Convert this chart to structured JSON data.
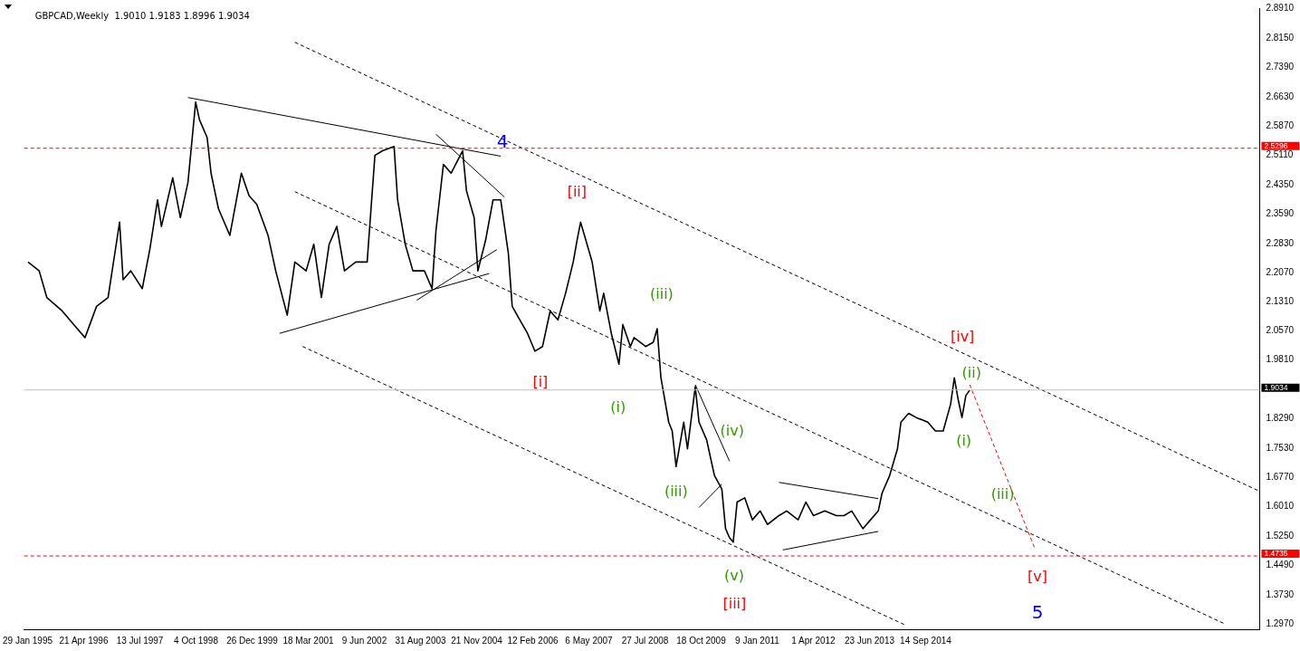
{
  "chart_data": {
    "type": "line",
    "title": "GBPCAD,Weekly  1.9010 1.9183 1.8996 1.9034",
    "marker": "none",
    "grid": false,
    "legend": false,
    "x": [
      "1995-02",
      "1995-05",
      "1995-07",
      "1995-11",
      "1996-02",
      "1996-05",
      "1996-08",
      "1996-11",
      "1997-02",
      "1997-03",
      "1997-05",
      "1997-08",
      "1997-10",
      "1997-12",
      "1998-01",
      "1998-04",
      "1998-06",
      "1998-08",
      "1998-10",
      "1998-11",
      "1999-01",
      "1999-02",
      "1999-04",
      "1999-07",
      "1999-10",
      "1999-12",
      "2000-02",
      "2000-05",
      "2000-07",
      "2000-10",
      "2000-12",
      "2001-03",
      "2001-05",
      "2001-07",
      "2001-09",
      "2001-11",
      "2002-01",
      "2002-04",
      "2002-07",
      "2002-09",
      "2002-11",
      "2003-02",
      "2003-03",
      "2003-05",
      "2003-07",
      "2003-10",
      "2003-12",
      "2004-01",
      "2004-03",
      "2004-05",
      "2004-08",
      "2004-09",
      "2004-11",
      "2004-12",
      "2005-02",
      "2005-04",
      "2005-06",
      "2005-08",
      "2005-09",
      "2005-11",
      "2006-01",
      "2006-03",
      "2006-05",
      "2006-07",
      "2006-09",
      "2006-11",
      "2007-01",
      "2007-02",
      "2007-03",
      "2007-06",
      "2007-08",
      "2007-09",
      "2007-11",
      "2008-01",
      "2008-02",
      "2008-04",
      "2008-05",
      "2008-08",
      "2008-10",
      "2008-11",
      "2008-12",
      "2009-02",
      "2009-03",
      "2009-04",
      "2009-06",
      "2009-07",
      "2009-09",
      "2009-10",
      "2009-12",
      "2010-01",
      "2010-02",
      "2010-04",
      "2010-05",
      "2010-06",
      "2010-07",
      "2010-08",
      "2010-10",
      "2010-12",
      "2011-02",
      "2011-04",
      "2011-07",
      "2011-09",
      "2011-12",
      "2012-02",
      "2012-04",
      "2012-07",
      "2012-10",
      "2012-12",
      "2013-02",
      "2013-05",
      "2013-07",
      "2013-09",
      "2013-10",
      "2013-12",
      "2014-02",
      "2014-03",
      "2014-05",
      "2014-07",
      "2014-10",
      "2014-12",
      "2015-02",
      "2015-04",
      "2015-05",
      "2015-06",
      "2015-07",
      "2015-08",
      "2015-09"
    ],
    "series": [
      {
        "color": "#000000",
        "values": [
          2.235,
          2.212,
          2.143,
          2.108,
          2.073,
          2.039,
          2.12,
          2.143,
          2.338,
          2.189,
          2.212,
          2.166,
          2.269,
          2.396,
          2.327,
          2.453,
          2.35,
          2.442,
          2.649,
          2.603,
          2.557,
          2.465,
          2.373,
          2.304,
          2.465,
          2.407,
          2.384,
          2.304,
          2.212,
          2.097,
          2.235,
          2.212,
          2.281,
          2.143,
          2.281,
          2.327,
          2.212,
          2.235,
          2.235,
          2.511,
          2.523,
          2.534,
          2.396,
          2.281,
          2.212,
          2.212,
          2.166,
          2.315,
          2.488,
          2.465,
          2.523,
          2.419,
          2.35,
          2.212,
          2.292,
          2.396,
          2.396,
          2.258,
          2.12,
          2.085,
          2.05,
          2.004,
          2.016,
          2.108,
          2.085,
          2.154,
          2.235,
          2.292,
          2.338,
          2.235,
          2.108,
          2.154,
          2.05,
          1.97,
          2.073,
          2.016,
          2.039,
          2.016,
          2.027,
          2.062,
          1.935,
          1.82,
          1.797,
          1.705,
          1.82,
          1.751,
          1.912,
          1.82,
          1.774,
          1.728,
          1.682,
          1.647,
          1.544,
          1.521,
          1.509,
          1.613,
          1.624,
          1.567,
          1.59,
          1.555,
          1.578,
          1.59,
          1.567,
          1.613,
          1.578,
          1.59,
          1.578,
          1.578,
          1.59,
          1.544,
          1.567,
          1.59,
          1.636,
          1.682,
          1.751,
          1.82,
          1.843,
          1.832,
          1.82,
          1.797,
          1.797,
          1.866,
          1.935,
          1.878,
          1.832,
          1.889,
          1.903
        ]
      },
      {
        "type": "line",
        "color": "#000000",
        "x": [
          "1998-08",
          "2005-06"
        ],
        "values": [
          2.661,
          2.509
        ]
      },
      {
        "type": "line",
        "color": "#000000",
        "x": [
          "2000-08",
          "2005-03"
        ],
        "values": [
          2.05,
          2.205
        ]
      },
      {
        "type": "line",
        "color": "#000000",
        "x": [
          "2003-08",
          "2005-05"
        ],
        "values": [
          2.136,
          2.267
        ]
      },
      {
        "type": "line",
        "color": "#000000",
        "x": [
          "2004-01",
          "2005-07"
        ],
        "values": [
          2.566,
          2.403
        ]
      },
      {
        "type": "line",
        "color": "#000000",
        "x": [
          "2009-09",
          "2010-06"
        ],
        "values": [
          1.917,
          1.719
        ]
      },
      {
        "type": "line",
        "color": "#000000",
        "x": [
          "2009-10",
          "2010-04"
        ],
        "values": [
          1.599,
          1.659
        ]
      },
      {
        "type": "line",
        "color": "#000000",
        "x": [
          "2011-07",
          "2013-09"
        ],
        "values": [
          1.664,
          1.622
        ]
      },
      {
        "type": "line",
        "color": "#000000",
        "x": [
          "2011-08",
          "2013-09"
        ],
        "values": [
          1.489,
          1.537
        ]
      },
      {
        "type": "line",
        "color": "#000000",
        "line_style": "dashed",
        "x": [
          "2000-12",
          "2022-01"
        ],
        "values": [
          2.804,
          1.641
        ]
      },
      {
        "type": "line",
        "color": "#000000",
        "line_style": "dashed",
        "x": [
          "2000-12",
          "2021-04"
        ],
        "values": [
          2.417,
          1.297
        ]
      },
      {
        "type": "line",
        "color": "#000000",
        "line_style": "dashed",
        "x": [
          "2001-02",
          "2014-04"
        ],
        "values": [
          2.016,
          1.295
        ]
      },
      {
        "type": "line",
        "color": "#ff0000",
        "line_style": "dashed",
        "x": [
          "2015-09",
          "2017-02"
        ],
        "values": [
          1.917,
          1.493
        ]
      }
    ],
    "xlim": [
      "1995-01",
      "2022-01"
    ],
    "xticks": [
      {
        "value": "1995-01-29",
        "label": "29 Jan 1995"
      },
      {
        "value": "1996-04-21",
        "label": "21 Apr 1996"
      },
      {
        "value": "1997-07-13",
        "label": "13 Jul 1997"
      },
      {
        "value": "1998-10-04",
        "label": "4 Oct 1998"
      },
      {
        "value": "1999-12-26",
        "label": "26 Dec 1999"
      },
      {
        "value": "2001-03-18",
        "label": "18 Mar 2001"
      },
      {
        "value": "2002-06-09",
        "label": "9 Jun 2002"
      },
      {
        "value": "2003-08-31",
        "label": "31 Aug 2003"
      },
      {
        "value": "2004-11-21",
        "label": "21 Nov 2004"
      },
      {
        "value": "2006-02-12",
        "label": "12 Feb 2006"
      },
      {
        "value": "2007-05-06",
        "label": "6 May 2007"
      },
      {
        "value": "2008-07-27",
        "label": "27 Jul 2008"
      },
      {
        "value": "2009-10-18",
        "label": "18 Oct 2009"
      },
      {
        "value": "2011-01-09",
        "label": "9 Jan 2011"
      },
      {
        "value": "2012-04-01",
        "label": "1 Apr 2012"
      },
      {
        "value": "2013-06-23",
        "label": "23 Jun 2013"
      },
      {
        "value": "2014-09-14",
        "label": "14 Sep 2014"
      }
    ],
    "ylim": [
      1.2835,
      2.8925
    ],
    "yticks": [
      {
        "value": 2.891,
        "label": "2.8910"
      },
      {
        "value": 2.815,
        "label": "2.8150"
      },
      {
        "value": 2.739,
        "label": "2.7390"
      },
      {
        "value": 2.663,
        "label": "2.6630"
      },
      {
        "value": 2.587,
        "label": "2.5870"
      },
      {
        "value": 2.511,
        "label": "2.5110"
      },
      {
        "value": 2.435,
        "label": "2.4350"
      },
      {
        "value": 2.359,
        "label": "2.3590"
      },
      {
        "value": 2.283,
        "label": "2.2830"
      },
      {
        "value": 2.207,
        "label": "2.2070"
      },
      {
        "value": 2.131,
        "label": "2.1310"
      },
      {
        "value": 2.057,
        "label": "2.0570"
      },
      {
        "value": 1.981,
        "label": "1.9810"
      },
      {
        "value": 1.829,
        "label": "1.8290"
      },
      {
        "value": 1.753,
        "label": "1.7530"
      },
      {
        "value": 1.677,
        "label": "1.6770"
      },
      {
        "value": 1.601,
        "label": "1.6010"
      },
      {
        "value": 1.525,
        "label": "1.5250"
      },
      {
        "value": 1.449,
        "label": "1.4490"
      },
      {
        "value": 1.373,
        "label": "1.3730"
      },
      {
        "value": 1.297,
        "label": "1.2970"
      }
    ],
    "ref_lines": [
      {
        "axis": "y",
        "value": 2.5296,
        "label": "2.5296",
        "color": "#ff0000",
        "line_style": "dashed"
      },
      {
        "axis": "y",
        "value": 1.4735,
        "label": "1.4735",
        "color": "#ff0000",
        "line_style": "dashed"
      },
      {
        "axis": "y",
        "value": 1.9034,
        "label": "1.9034",
        "color": "#c0c0c0",
        "line_style": "solid"
      }
    ],
    "annotations": [
      {
        "text": "4",
        "x": "2005-06",
        "y": 2.509
      },
      {
        "text": "[ii]",
        "x": "2007-03",
        "y": 2.338
      },
      {
        "text": "(iii)",
        "x": "2008-11",
        "y": 2.062
      },
      {
        "text": "[iv]",
        "x": "2015-05",
        "y": 1.935
      },
      {
        "text": "(ii)",
        "x": "2015-09",
        "y": 1.903
      },
      {
        "text": "[i]",
        "x": "2006-03",
        "y": 2.004
      },
      {
        "text": "(i)",
        "x": "2008-01",
        "y": 1.97
      },
      {
        "text": "(iv)",
        "x": "2010-06",
        "y": 1.719
      },
      {
        "text": "(i)",
        "x": "2015-07",
        "y": 1.832
      },
      {
        "text": "(iii)",
        "x": "2009-04",
        "y": 1.705
      },
      "(iii)",
      {
        "text": "(v)",
        "x": "2010-07",
        "y": 1.509
      },
      {
        "text": "[v]",
        "x": "2017-02",
        "y": 1.493
      },
      "[iii]",
      {
        "text": "5",
        "x": "2017-02",
        "y": 1.493
      }
    ]
  }
}
